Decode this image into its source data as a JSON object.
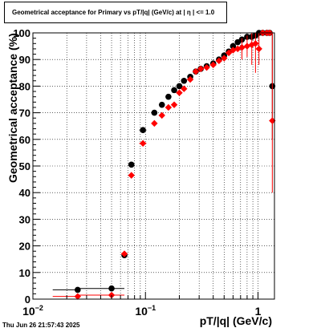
{
  "title": "Geometrical acceptance for Primary vs pT/|q| (GeV/c) at |  η  | <= 1.0",
  "footer": "Thu Jun 26 21:57:43 2025",
  "chart_data": {
    "type": "scatter",
    "title": "Geometrical acceptance for Primary vs pT/|q| (GeV/c) at |  η  | <= 1.0",
    "xlabel": "pT/|q| (GeV/c)",
    "ylabel": "Geometrical acceptance (%)",
    "xscale": "log",
    "xlim": [
      0.01,
      1.4
    ],
    "ylim": [
      0,
      100
    ],
    "grid": true,
    "y_ticks": [
      "0",
      "10",
      "20",
      "30",
      "40",
      "50",
      "60",
      "70",
      "80",
      "90",
      "100"
    ],
    "x_ticks": [
      {
        "value": 0.01,
        "base": "10",
        "exp": "−2"
      },
      {
        "value": 0.1,
        "base": "10",
        "exp": "−1"
      },
      {
        "value": 1,
        "base": "1",
        "exp": ""
      }
    ],
    "colors": {
      "black_series": "#000000",
      "red_series": "#ff0000",
      "grid": "#000000"
    },
    "series": [
      {
        "color": "#000000",
        "points": [
          {
            "x": 0.025,
            "y": 3.5,
            "xerr": [
              0.015,
              0.0245
            ]
          },
          {
            "x": 0.05,
            "y": 4.0,
            "xerr": [
              0.0255,
              0.065
            ]
          },
          {
            "x": 0.065,
            "y": 16.5,
            "xerr": [
              0.062,
              0.068
            ]
          },
          {
            "x": 0.075,
            "y": 50.5,
            "xerr": [
              0.0735,
              0.0765
            ]
          },
          {
            "x": 0.095,
            "y": 63.5,
            "xerr": [
              0.088,
              0.102
            ]
          },
          {
            "x": 0.12,
            "y": 70.0,
            "xerr": [
              0.115,
              0.125
            ]
          },
          {
            "x": 0.14,
            "y": 73.0
          },
          {
            "x": 0.16,
            "y": 76.0
          },
          {
            "x": 0.18,
            "y": 78.5
          },
          {
            "x": 0.2,
            "y": 80.0
          },
          {
            "x": 0.22,
            "y": 82.0
          },
          {
            "x": 0.25,
            "y": 83.5
          },
          {
            "x": 0.28,
            "y": 85.5
          },
          {
            "x": 0.31,
            "y": 86.5
          },
          {
            "x": 0.35,
            "y": 87.5
          },
          {
            "x": 0.4,
            "y": 88.5
          },
          {
            "x": 0.45,
            "y": 90.0
          },
          {
            "x": 0.5,
            "y": 91.5
          },
          {
            "x": 0.55,
            "y": 93.0
          },
          {
            "x": 0.6,
            "y": 95.0
          },
          {
            "x": 0.66,
            "y": 96.5
          },
          {
            "x": 0.72,
            "y": 97.5
          },
          {
            "x": 0.8,
            "y": 98.5
          },
          {
            "x": 0.88,
            "y": 98.5
          },
          {
            "x": 0.95,
            "y": 99.0
          },
          {
            "x": 1.02,
            "y": 100.0
          },
          {
            "x": 1.1,
            "y": 100.0
          },
          {
            "x": 1.2,
            "y": 100.0
          },
          {
            "x": 1.27,
            "y": 100.0
          },
          {
            "x": 1.34,
            "y": 80.0,
            "yerr": [
              60,
              100
            ]
          }
        ]
      },
      {
        "color": "#ff0000",
        "points": [
          {
            "x": 0.025,
            "y": 1.0,
            "xerr": [
              0.015,
              0.0245
            ]
          },
          {
            "x": 0.05,
            "y": 1.5,
            "xerr": [
              0.0255,
              0.065
            ]
          },
          {
            "x": 0.065,
            "y": 17.0,
            "xerr": [
              0.062,
              0.068
            ]
          },
          {
            "x": 0.075,
            "y": 46.5,
            "xerr": [
              0.0735,
              0.0765
            ]
          },
          {
            "x": 0.095,
            "y": 58.5,
            "xerr": [
              0.088,
              0.102
            ]
          },
          {
            "x": 0.12,
            "y": 66.0,
            "xerr": [
              0.115,
              0.125
            ]
          },
          {
            "x": 0.14,
            "y": 69.0
          },
          {
            "x": 0.16,
            "y": 72.0
          },
          {
            "x": 0.18,
            "y": 73.0
          },
          {
            "x": 0.2,
            "y": 77.5
          },
          {
            "x": 0.22,
            "y": 79.0
          },
          {
            "x": 0.25,
            "y": 82.5
          },
          {
            "x": 0.28,
            "y": 85.5
          },
          {
            "x": 0.31,
            "y": 86.5
          },
          {
            "x": 0.35,
            "y": 87.0
          },
          {
            "x": 0.4,
            "y": 88.0
          },
          {
            "x": 0.45,
            "y": 89.5
          },
          {
            "x": 0.5,
            "y": 90.5
          },
          {
            "x": 0.55,
            "y": 92.5
          },
          {
            "x": 0.6,
            "y": 93.5
          },
          {
            "x": 0.66,
            "y": 94.0
          },
          {
            "x": 0.72,
            "y": 94.5,
            "yerr": [
              90,
              98
            ]
          },
          {
            "x": 0.8,
            "y": 95.0,
            "yerr": [
              91,
              99
            ]
          },
          {
            "x": 0.88,
            "y": 95.5,
            "yerr": [
              88,
              100
            ]
          },
          {
            "x": 0.95,
            "y": 96.0,
            "yerr": [
              85,
              100
            ]
          },
          {
            "x": 1.02,
            "y": 94.0,
            "yerr": [
              88,
              100
            ]
          },
          {
            "x": 1.1,
            "y": 100.0
          },
          {
            "x": 1.2,
            "y": 100.0
          },
          {
            "x": 1.27,
            "y": 100.0
          },
          {
            "x": 1.34,
            "y": 67.0,
            "yerr": [
              40,
              100
            ]
          }
        ]
      }
    ]
  }
}
